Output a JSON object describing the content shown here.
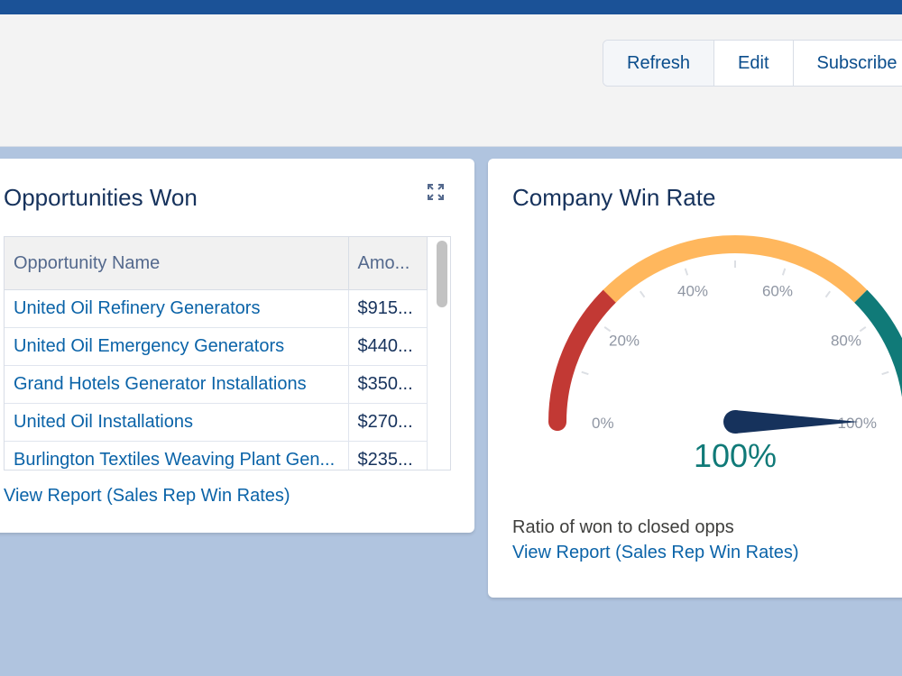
{
  "header": {
    "buttons": [
      {
        "label": "Refresh"
      },
      {
        "label": "Edit"
      },
      {
        "label": "Subscribe"
      }
    ]
  },
  "opportunities_card": {
    "title": "Opportunities Won",
    "columns": [
      "Opportunity Name",
      "Amo..."
    ],
    "rows": [
      {
        "name": "United Oil Refinery Generators",
        "amount": "$915..."
      },
      {
        "name": "United Oil Emergency Generators",
        "amount": "$440..."
      },
      {
        "name": "Grand Hotels Generator Installations",
        "amount": "$350..."
      },
      {
        "name": "United Oil Installations",
        "amount": "$270..."
      },
      {
        "name": "Burlington Textiles Weaving Plant Gen...",
        "amount": "$235..."
      }
    ],
    "view_report": "View Report (Sales Rep Win Rates)"
  },
  "win_rate_card": {
    "title": "Company Win Rate",
    "gauge": {
      "value": 100,
      "value_label": "100%",
      "ticks": [
        "0%",
        "20%",
        "40%",
        "60%",
        "80%",
        "100%"
      ],
      "bands": [
        {
          "from": 0,
          "to": 25,
          "color": "#c23934"
        },
        {
          "from": 25,
          "to": 75,
          "color": "#ffb75d"
        },
        {
          "from": 75,
          "to": 100,
          "color": "#107a78"
        }
      ],
      "needle_color": "#16325c"
    },
    "caption": "Ratio of won to closed opps",
    "view_report": "View Report (Sales Rep Win Rates)"
  }
}
